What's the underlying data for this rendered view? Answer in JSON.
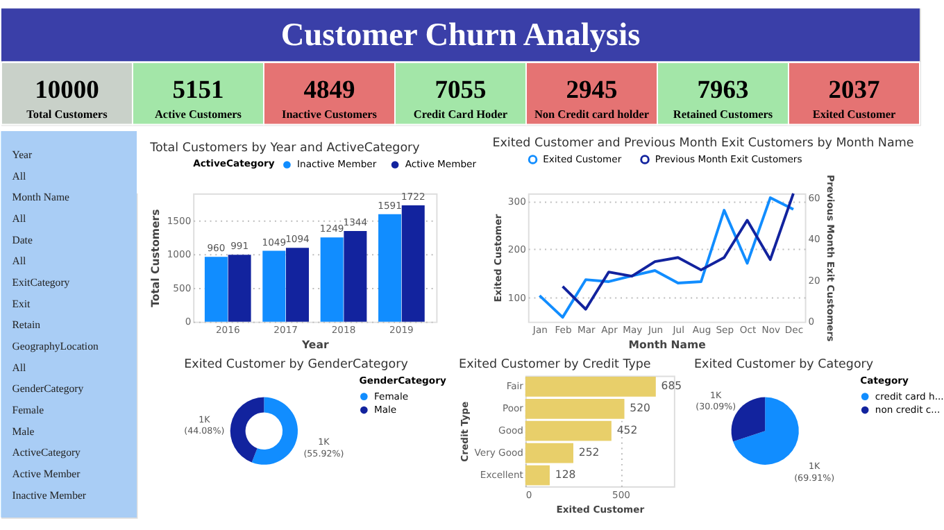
{
  "chart_data": [
    {
      "type": "other",
      "title": "Customer Churn Analysis",
      "categories": [
        "Total Customers",
        "Active Customers",
        "Inactive Customers",
        "Credit Card Hoder",
        "Non Credit card holder",
        "Retained Customers",
        "Exited Customer"
      ],
      "values": [
        10000,
        5151,
        4849,
        7055,
        2945,
        7963,
        2037
      ],
      "colors": [
        "#c9d1c9",
        "#a3e6a8",
        "#e57373",
        "#a3e6a8",
        "#e57373",
        "#a3e6a8",
        "#e57373"
      ],
      "data_labels": true
    },
    {
      "type": "other",
      "annotations": [
        "Year",
        "All",
        "Month Name",
        "All",
        "Date",
        "All",
        "ExitCategory",
        "Exit",
        "Retain",
        "GeographyLocation",
        "All",
        "GenderCategory",
        "Female",
        "Male",
        "ActiveCategory",
        "Active Member",
        "Inactive Member"
      ]
    },
    {
      "type": "bar",
      "title": "Total Customers by Year and ActiveCategory",
      "xlabel": "Year",
      "ylabel": "Total Customers",
      "legend_title": "ActiveCategory",
      "categories": [
        "2016",
        "2017",
        "2018",
        "2019"
      ],
      "series": [
        {
          "name": "Inactive Member",
          "color": "#118dff",
          "values": [
            960,
            1049,
            1249,
            1591
          ]
        },
        {
          "name": "Active Member",
          "color": "#12239e",
          "values": [
            991,
            1094,
            1344,
            1722
          ]
        }
      ],
      "ylim": [
        0,
        1900
      ],
      "yticks": [
        0,
        500,
        1000,
        1500
      ],
      "grid": "y",
      "legend": "top",
      "data_labels": true
    },
    {
      "type": "line",
      "title": "Exited Customer and Previous Month Exit Customers by Month Name",
      "xlabel": "Month Name",
      "ylabel": "Exited Customer",
      "y2label": "Previous Month Exit Customers",
      "categories": [
        "Jan",
        "Feb",
        "Mar",
        "Apr",
        "May",
        "Jun",
        "Jul",
        "Aug",
        "Sep",
        "Oct",
        "Nov",
        "Dec"
      ],
      "series": [
        {
          "name": "Exited Customer",
          "color": "#118dff",
          "values": [
            104,
            59,
            137,
            133,
            145,
            156,
            130,
            133,
            281,
            171,
            307,
            283
          ]
        },
        {
          "name": "Previous Month Exit Customers",
          "color": "#12239e",
          "axis": "y2",
          "values": [
            null,
            17,
            6,
            24,
            22,
            29,
            31,
            25,
            31,
            49,
            30,
            62
          ]
        }
      ],
      "ylim": [
        50,
        316
      ],
      "yticks": [
        100,
        200,
        300
      ],
      "y2lim": [
        0,
        62
      ],
      "y2ticks": [
        0,
        20,
        40,
        60
      ],
      "grid": "y",
      "legend": "top",
      "marker": "none",
      "line_style": "solid"
    },
    {
      "type": "donut",
      "title": "Exited Customer by GenderCategory",
      "legend_title": "GenderCategory",
      "categories": [
        "Female",
        "Male"
      ],
      "values": [
        55.92,
        44.08
      ],
      "colors": [
        "#118dff",
        "#12239e"
      ],
      "value_labels": [
        "1K (55.92%)",
        "1K (44.08%)"
      ],
      "legend": "right"
    },
    {
      "type": "bar",
      "orientation": "horizontal",
      "title": "Exited Customer by Credit Type",
      "xlabel": "Exited Customer",
      "ylabel": "Credit Type",
      "categories": [
        "Fair",
        "Poor",
        "Good",
        "Very Good",
        "Excellent"
      ],
      "values": [
        685,
        520,
        452,
        252,
        128
      ],
      "color": "#e8cf6a",
      "xlim": [
        0,
        780
      ],
      "xticks": [
        0,
        500
      ],
      "grid": "x",
      "data_labels": true
    },
    {
      "type": "pie",
      "title": "Exited Customer by Category",
      "legend_title": "Category",
      "categories": [
        "credit card h...",
        "non credit c..."
      ],
      "values": [
        69.91,
        30.09
      ],
      "colors": [
        "#118dff",
        "#12239e"
      ],
      "value_labels": [
        "1K (69.91%)",
        "1K (30.09%)"
      ],
      "legend": "right"
    }
  ]
}
